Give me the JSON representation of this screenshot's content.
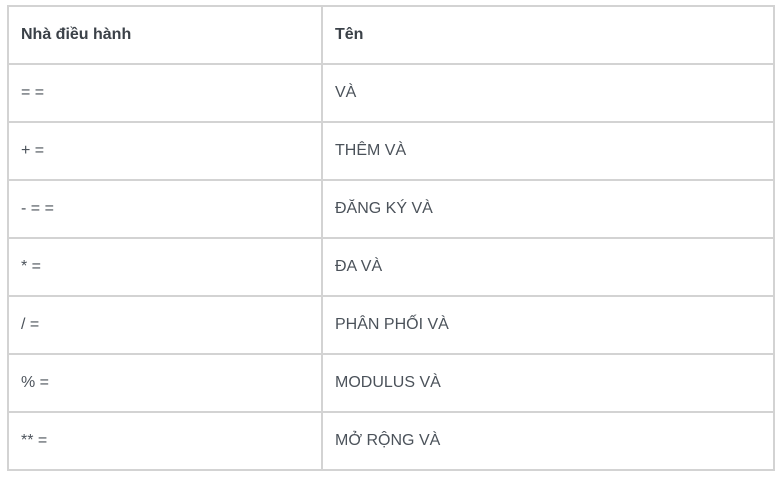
{
  "table": {
    "headers": [
      "Nhà điều hành",
      "Tên"
    ],
    "rows": [
      [
        "= =",
        "VÀ"
      ],
      [
        "+ =",
        "THÊM VÀ"
      ],
      [
        "- = =",
        "ĐĂNG KÝ VÀ"
      ],
      [
        "* =",
        "ĐA VÀ"
      ],
      [
        "/ =",
        "PHÂN PHỐI VÀ"
      ],
      [
        "% =",
        "MODULUS VÀ"
      ],
      [
        "** =",
        "MỞ RỘNG VÀ"
      ]
    ]
  }
}
